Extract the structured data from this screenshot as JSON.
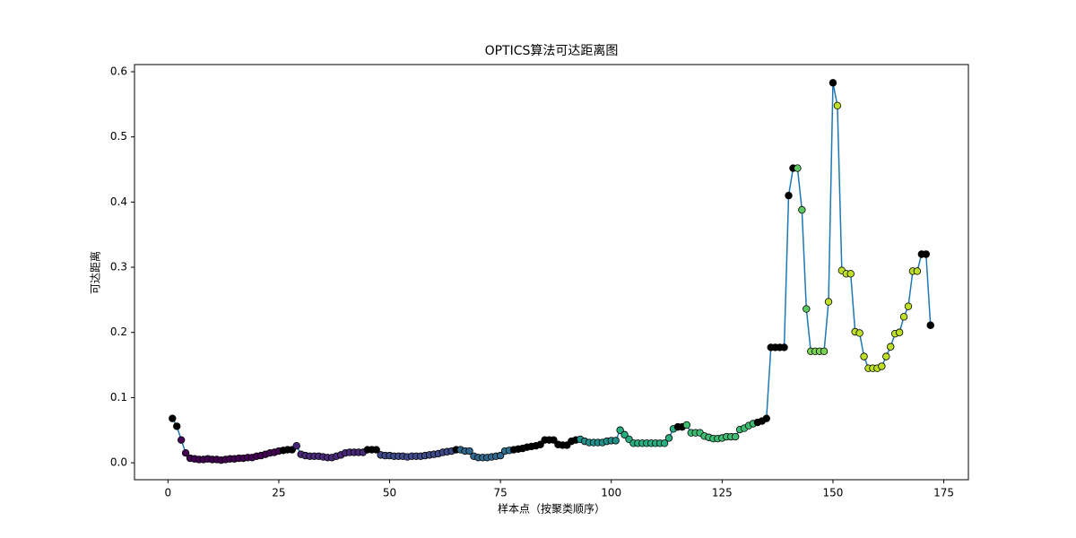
{
  "chart_data": {
    "type": "line",
    "title": "OPTICS算法可达距离图",
    "x_label": "样本点（按聚类顺序）",
    "y_label": "可达距离",
    "line_color": "#1f77b4",
    "x": [
      1,
      2,
      3,
      4,
      5,
      6,
      7,
      8,
      9,
      10,
      11,
      12,
      13,
      14,
      15,
      16,
      17,
      18,
      19,
      20,
      21,
      22,
      23,
      24,
      25,
      26,
      27,
      28,
      29,
      30,
      31,
      32,
      33,
      34,
      35,
      36,
      37,
      38,
      39,
      40,
      41,
      42,
      43,
      44,
      45,
      46,
      47,
      48,
      49,
      50,
      51,
      52,
      53,
      54,
      55,
      56,
      57,
      58,
      59,
      60,
      61,
      62,
      63,
      64,
      65,
      66,
      67,
      68,
      69,
      70,
      71,
      72,
      73,
      74,
      75,
      76,
      77,
      78,
      79,
      80,
      81,
      82,
      83,
      84,
      85,
      86,
      87,
      88,
      89,
      90,
      91,
      92,
      93,
      94,
      95,
      96,
      97,
      98,
      99,
      100,
      101,
      102,
      103,
      104,
      105,
      106,
      107,
      108,
      109,
      110,
      111,
      112,
      113,
      114,
      115,
      116,
      117,
      118,
      119,
      120,
      121,
      122,
      123,
      124,
      125,
      126,
      127,
      128,
      129,
      130,
      131,
      132,
      133,
      134,
      135,
      136,
      137,
      138,
      139,
      140,
      141,
      142,
      143,
      144,
      145,
      146,
      147,
      148,
      149,
      150,
      151,
      152,
      153,
      154,
      155,
      156,
      157,
      158,
      159,
      160,
      161,
      162,
      163,
      164,
      165,
      166,
      167,
      168,
      169,
      170,
      171,
      172
    ],
    "values": [
      0.068,
      0.056,
      0.035,
      0.015,
      0.007,
      0.006,
      0.005,
      0.005,
      0.006,
      0.005,
      0.005,
      0.004,
      0.005,
      0.006,
      0.006,
      0.007,
      0.007,
      0.008,
      0.008,
      0.01,
      0.011,
      0.013,
      0.015,
      0.016,
      0.018,
      0.019,
      0.02,
      0.02,
      0.026,
      0.013,
      0.011,
      0.01,
      0.01,
      0.01,
      0.009,
      0.008,
      0.008,
      0.01,
      0.012,
      0.015,
      0.016,
      0.016,
      0.016,
      0.016,
      0.02,
      0.02,
      0.02,
      0.012,
      0.011,
      0.011,
      0.01,
      0.01,
      0.01,
      0.009,
      0.01,
      0.01,
      0.01,
      0.011,
      0.012,
      0.013,
      0.014,
      0.016,
      0.017,
      0.018,
      0.02,
      0.02,
      0.018,
      0.018,
      0.01,
      0.008,
      0.008,
      0.008,
      0.009,
      0.01,
      0.011,
      0.018,
      0.019,
      0.02,
      0.021,
      0.022,
      0.024,
      0.025,
      0.026,
      0.028,
      0.035,
      0.035,
      0.035,
      0.028,
      0.027,
      0.027,
      0.033,
      0.035,
      0.036,
      0.033,
      0.031,
      0.031,
      0.031,
      0.031,
      0.033,
      0.034,
      0.034,
      0.05,
      0.043,
      0.036,
      0.03,
      0.03,
      0.03,
      0.03,
      0.03,
      0.03,
      0.03,
      0.03,
      0.038,
      0.052,
      0.055,
      0.055,
      0.058,
      0.046,
      0.046,
      0.046,
      0.041,
      0.039,
      0.037,
      0.037,
      0.038,
      0.04,
      0.04,
      0.04,
      0.051,
      0.053,
      0.057,
      0.06,
      0.062,
      0.064,
      0.068,
      0.177,
      0.177,
      0.177,
      0.177,
      0.41,
      0.452,
      0.452,
      0.388,
      0.236,
      0.171,
      0.171,
      0.171,
      0.171,
      0.247,
      0.583,
      0.548,
      0.295,
      0.29,
      0.29,
      0.201,
      0.199,
      0.163,
      0.145,
      0.145,
      0.145,
      0.148,
      0.163,
      0.178,
      0.198,
      0.2,
      0.224,
      0.24,
      0.294,
      0.294,
      0.32,
      0.32,
      0.211
    ],
    "marker_colors": [
      "#000000",
      "#000000",
      "#440154",
      "#440154",
      "#440154",
      "#440154",
      "#440154",
      "#440154",
      "#440154",
      "#440154",
      "#440154",
      "#440154",
      "#440154",
      "#440154",
      "#440154",
      "#440154",
      "#440154",
      "#440154",
      "#440154",
      "#440154",
      "#440154",
      "#440154",
      "#440154",
      "#440154",
      "#440154",
      "#000000",
      "#000000",
      "#000000",
      "#482878",
      "#482878",
      "#482878",
      "#482878",
      "#482878",
      "#482878",
      "#482878",
      "#482878",
      "#482878",
      "#482878",
      "#482878",
      "#482878",
      "#482878",
      "#482878",
      "#482878",
      "#482878",
      "#000000",
      "#000000",
      "#000000",
      "#3e4a89",
      "#3e4a89",
      "#3e4a89",
      "#3e4a89",
      "#3e4a89",
      "#3e4a89",
      "#3e4a89",
      "#3e4a89",
      "#3e4a89",
      "#3e4a89",
      "#3e4a89",
      "#3e4a89",
      "#3e4a89",
      "#3e4a89",
      "#3e4a89",
      "#3e4a89",
      "#3e4a89",
      "#000000",
      "#31688e",
      "#31688e",
      "#31688e",
      "#31688e",
      "#31688e",
      "#31688e",
      "#31688e",
      "#31688e",
      "#31688e",
      "#31688e",
      "#2c728e",
      "#2c728e",
      "#000000",
      "#000000",
      "#000000",
      "#000000",
      "#000000",
      "#000000",
      "#000000",
      "#000000",
      "#000000",
      "#000000",
      "#000000",
      "#000000",
      "#000000",
      "#000000",
      "#000000",
      "#21918c",
      "#21918c",
      "#21918c",
      "#21918c",
      "#21918c",
      "#21918c",
      "#21918c",
      "#21918c",
      "#21918c",
      "#28ae80",
      "#28ae80",
      "#28ae80",
      "#28ae80",
      "#28ae80",
      "#28ae80",
      "#28ae80",
      "#28ae80",
      "#28ae80",
      "#28ae80",
      "#28ae80",
      "#28ae80",
      "#28ae80",
      "#000000",
      "#000000",
      "#3fbc73",
      "#3fbc73",
      "#3fbc73",
      "#3fbc73",
      "#3fbc73",
      "#3fbc73",
      "#3fbc73",
      "#3fbc73",
      "#3fbc73",
      "#3fbc73",
      "#3fbc73",
      "#3fbc73",
      "#3fbc73",
      "#3fbc73",
      "#3fbc73",
      "#3fbc73",
      "#000000",
      "#000000",
      "#000000",
      "#000000",
      "#000000",
      "#000000",
      "#000000",
      "#000000",
      "#000000",
      "#5ec962",
      "#5ec962",
      "#5ec962",
      "#7ad151",
      "#7ad151",
      "#7ad151",
      "#7ad151",
      "#bddf26",
      "#000000",
      "#bddf26",
      "#bddf26",
      "#bddf26",
      "#bddf26",
      "#bddf26",
      "#bddf26",
      "#bddf26",
      "#bddf26",
      "#bddf26",
      "#bddf26",
      "#bddf26",
      "#bddf26",
      "#bddf26",
      "#bddf26",
      "#bddf26",
      "#bddf26",
      "#bddf26",
      "#bddf26",
      "#bddf26",
      "#000000",
      "#000000",
      "#000000"
    ],
    "xlim": [
      -7.55,
      180.55
    ],
    "xticks": [
      0,
      25,
      50,
      75,
      100,
      125,
      150,
      175
    ],
    "ylim": [
      -0.026,
      0.611
    ],
    "yticks": [
      {
        "value": 0,
        "label": "0.0"
      },
      0.1,
      0.2,
      0.3,
      0.4,
      0.5,
      0.6
    ]
  }
}
